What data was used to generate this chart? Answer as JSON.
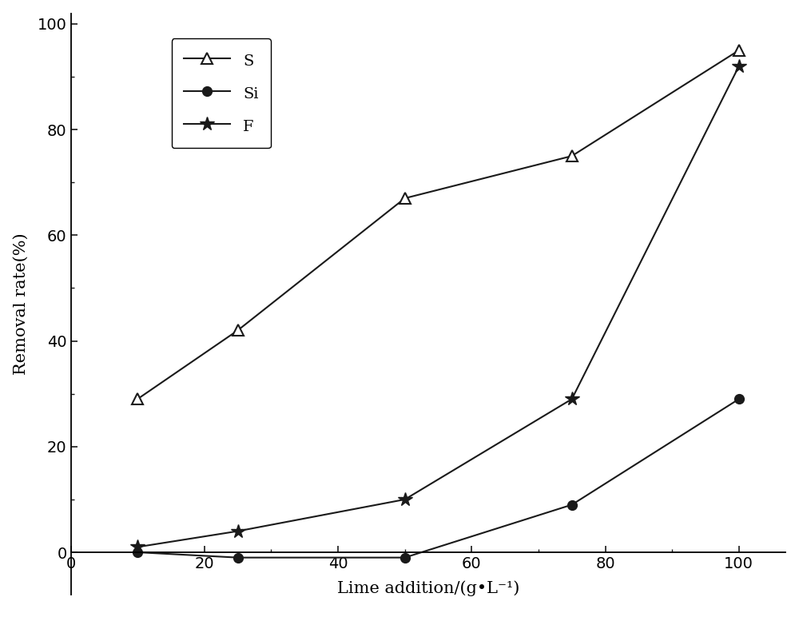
{
  "S_x": [
    10,
    25,
    50,
    75,
    100
  ],
  "S_y": [
    29,
    42,
    67,
    75,
    95
  ],
  "Si_x": [
    10,
    25,
    50,
    75,
    100
  ],
  "Si_y": [
    0,
    -1,
    -1,
    9,
    29
  ],
  "F_x": [
    10,
    25,
    50,
    75,
    100
  ],
  "F_y": [
    1,
    4,
    10,
    29,
    92
  ],
  "xlabel": "Lime addition/(g•L⁻¹)",
  "ylabel": "Removal rate(%)",
  "xlim": [
    0,
    107
  ],
  "ylim": [
    -8,
    102
  ],
  "xticks_major": [
    0,
    20,
    40,
    60,
    80,
    100
  ],
  "yticks_major": [
    0,
    20,
    40,
    60,
    80,
    100
  ],
  "line_color": "#1a1a1a",
  "bg_color": "#ffffff",
  "legend_S": "S",
  "legend_Si": "Si",
  "legend_F": "F",
  "axis_fontsize": 15,
  "tick_fontsize": 14,
  "legend_fontsize": 14
}
